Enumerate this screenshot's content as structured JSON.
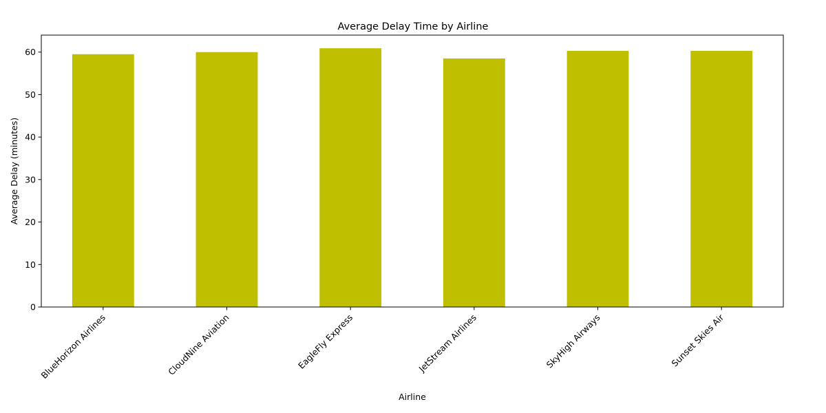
{
  "chart_data": {
    "type": "bar",
    "title": "Average Delay Time by Airline",
    "xlabel": "Airline",
    "ylabel": "Average Delay (minutes)",
    "categories": [
      "BlueHorizon Airlines",
      "CloudNine Aviation",
      "EagleFly Express",
      "JetStream Airlines",
      "SkyHigh Airways",
      "Sunset Skies Air"
    ],
    "values": [
      59.5,
      60.0,
      60.9,
      58.5,
      60.3,
      60.3
    ],
    "ylim": [
      0,
      64
    ],
    "yticks": [
      0,
      10,
      20,
      30,
      40,
      50,
      60
    ],
    "bar_color": "#bfbf00",
    "grid": false,
    "legend": "none"
  }
}
